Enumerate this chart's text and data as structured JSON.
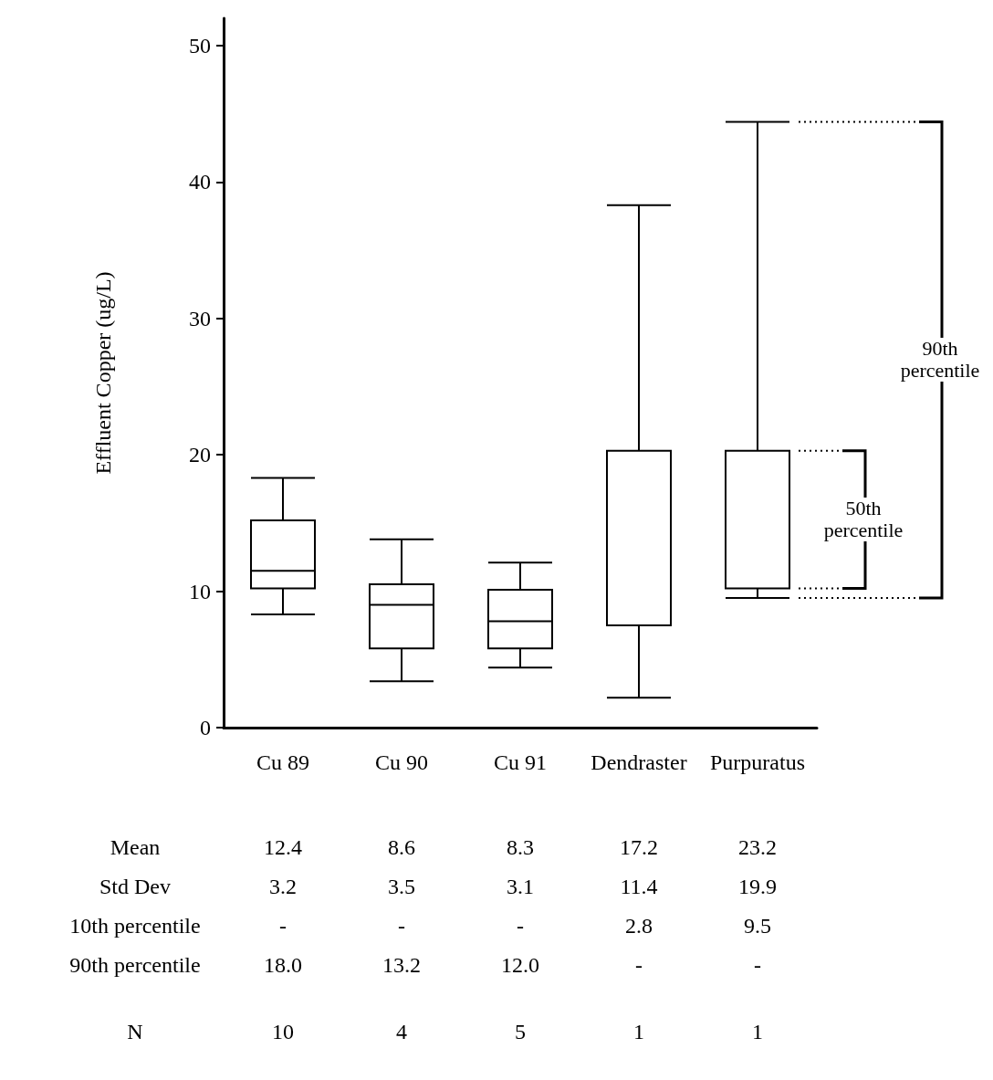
{
  "chart_data": {
    "type": "box",
    "ylabel": "Effluent Copper (ug/L)",
    "categories": [
      "Cu 89",
      "Cu 90",
      "Cu 91",
      "Dendraster",
      "Purpuratus"
    ],
    "boxes": [
      {
        "low": 8.3,
        "q1": 10.2,
        "median": 11.5,
        "q3": 15.2,
        "high": 18.3
      },
      {
        "low": 3.4,
        "q1": 5.8,
        "median": 9.0,
        "q3": 10.5,
        "high": 13.8
      },
      {
        "low": 4.4,
        "q1": 5.8,
        "median": 7.8,
        "q3": 10.1,
        "high": 12.1
      },
      {
        "low": 2.2,
        "q1": 7.5,
        "median": 20.3,
        "q3": 20.3,
        "high": 38.3
      },
      {
        "low": 9.5,
        "q1": 10.2,
        "median": 20.3,
        "q3": 20.3,
        "high": 44.4
      }
    ],
    "color": "#000000",
    "ylim": [
      0,
      52
    ],
    "yticks": [
      0,
      10,
      20,
      30,
      40,
      50
    ],
    "grid": false,
    "annotations": [
      "90th percentile",
      "50th percentile",
      "Mean",
      "12.4",
      "8.6",
      "8.3",
      "17.2",
      "23.2",
      "Std Dev",
      "3.2",
      "3.5",
      "3.1",
      "11.4",
      "19.9",
      "10th percentile",
      "-",
      "-",
      "-",
      "2.8",
      "9.5",
      "90th percentile",
      "18.0",
      "13.2",
      "12.0",
      "-",
      "-",
      "N",
      "10",
      "4",
      "5",
      "1",
      "1"
    ]
  }
}
